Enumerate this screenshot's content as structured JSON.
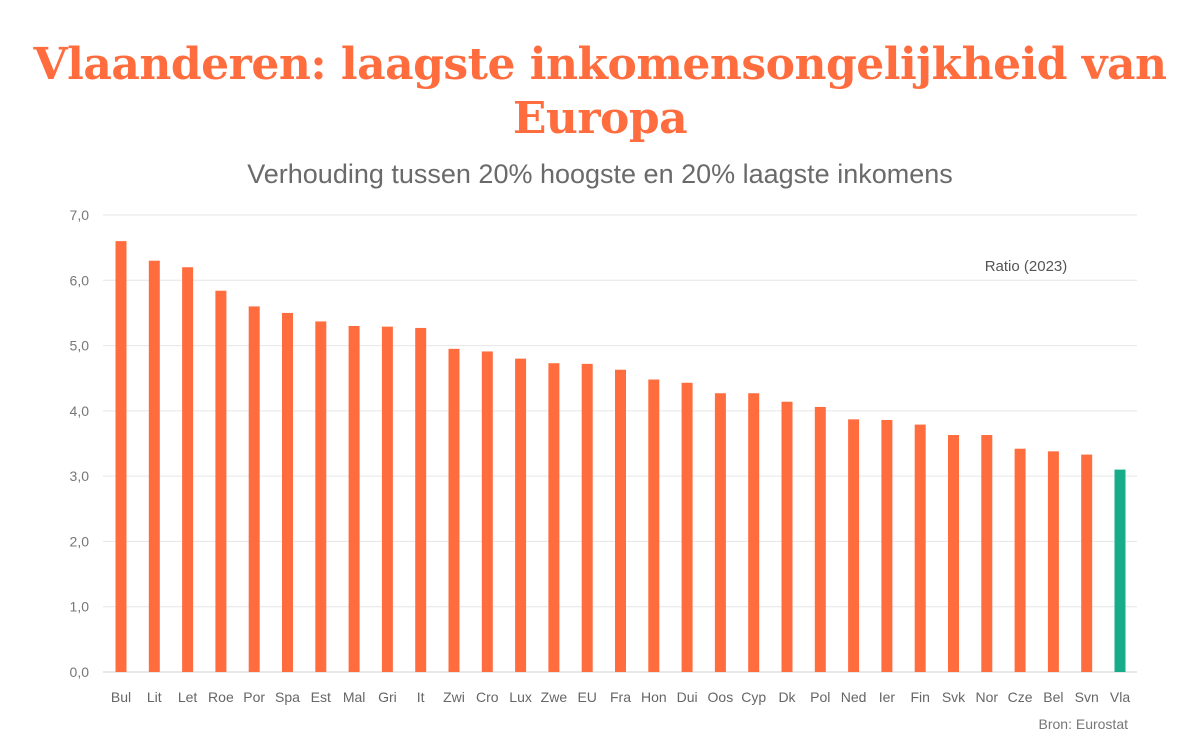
{
  "chart_data": {
    "type": "bar",
    "title": "Vlaanderen: laagste inkomensongelijkheid van Europa",
    "subtitle": "Verhouding tussen 20% hoogste en 20% laagste inkomens",
    "source": "Bron: Eurostat",
    "series_name": "Ratio (2023)",
    "ylim": [
      0,
      7
    ],
    "yticks": [
      "0,0",
      "1,0",
      "2,0",
      "3,0",
      "4,0",
      "5,0",
      "6,0",
      "7,0"
    ],
    "grid": true,
    "legend_position": "top-right",
    "categories": [
      "Bul",
      "Lit",
      "Let",
      "Roe",
      "Por",
      "Spa",
      "Est",
      "Mal",
      "Gri",
      "It",
      "Zwi",
      "Cro",
      "Lux",
      "Zwe",
      "EU",
      "Fra",
      "Hon",
      "Dui",
      "Oos",
      "Cyp",
      "Dk",
      "Pol",
      "Ned",
      "Ier",
      "Fin",
      "Svk",
      "Nor",
      "Cze",
      "Bel",
      "Svn",
      "Vla"
    ],
    "values": [
      6.6,
      6.3,
      6.2,
      5.84,
      5.6,
      5.5,
      5.37,
      5.3,
      5.29,
      5.27,
      4.95,
      4.91,
      4.8,
      4.73,
      4.72,
      4.63,
      4.48,
      4.43,
      4.27,
      4.27,
      4.14,
      4.06,
      3.87,
      3.86,
      3.79,
      3.63,
      3.63,
      3.42,
      3.38,
      3.33,
      3.1
    ],
    "colors": {
      "default": "#ff6d3f",
      "highlight": "#17ad8b",
      "highlight_category": "Vla"
    }
  }
}
